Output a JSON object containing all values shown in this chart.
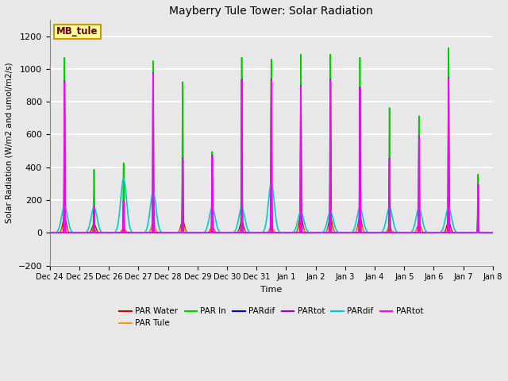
{
  "title": "Mayberry Tule Tower: Solar Radiation",
  "xlabel": "Time",
  "ylabel": "Solar Radiation (W/m2 and umol/m2/s)",
  "ylim": [
    -200,
    1300
  ],
  "yticks": [
    -200,
    0,
    200,
    400,
    600,
    800,
    1000,
    1200
  ],
  "date_labels": [
    "Dec 24",
    "Dec 25",
    "Dec 26",
    "Dec 27",
    "Dec 28",
    "Dec 29",
    "Dec 30",
    "Dec 31",
    "Jan 1",
    "Jan 2",
    "Jan 3",
    "Jan 4",
    "Jan 5",
    "Jan 6",
    "Jan 7",
    "Jan 8"
  ],
  "n_days": 15,
  "legend_entries": [
    {
      "label": "PAR Water",
      "color": "#cc0000"
    },
    {
      "label": "PAR Tule",
      "color": "#ff9900"
    },
    {
      "label": "PAR In",
      "color": "#00cc00"
    },
    {
      "label": "PARdif",
      "color": "#0000cc"
    },
    {
      "label": "PARtot",
      "color": "#9900cc"
    },
    {
      "label": "PARdif",
      "color": "#00cccc"
    },
    {
      "label": "PARtot",
      "color": "#ff00ff"
    }
  ],
  "background_color": "#e8e8e8",
  "plot_bg": "#e8e8e8",
  "grid_color": "white",
  "annotation_text": "MB_tule",
  "annotation_fg": "#660000",
  "annotation_bg": "#ffff99",
  "annotation_border": "#cc9900",
  "peak_heights": {
    "PAR_Water": [
      95,
      55,
      20,
      55,
      75,
      35,
      70,
      35,
      105,
      95,
      95,
      30,
      55,
      70,
      0
    ],
    "PAR_Tule": [
      55,
      20,
      30,
      60,
      45,
      25,
      35,
      30,
      60,
      60,
      65,
      40,
      40,
      20,
      0
    ],
    "PAR_In": [
      1080,
      390,
      430,
      1060,
      930,
      500,
      1080,
      1070,
      1100,
      1100,
      1080,
      770,
      720,
      1140,
      360
    ],
    "PARdif_blue": [
      0,
      0,
      0,
      0,
      0,
      0,
      0,
      0,
      0,
      0,
      0,
      0,
      0,
      0,
      0
    ],
    "PARtot_purple": [
      940,
      160,
      200,
      990,
      460,
      480,
      950,
      950,
      910,
      950,
      900,
      460,
      600,
      960,
      300
    ],
    "PARdif_cyan": [
      165,
      155,
      330,
      250,
      0,
      155,
      155,
      305,
      130,
      130,
      155,
      155,
      155,
      155,
      0
    ],
    "PARtot_magenta": [
      940,
      160,
      200,
      990,
      460,
      480,
      950,
      950,
      910,
      950,
      900,
      460,
      600,
      960,
      300
    ]
  }
}
